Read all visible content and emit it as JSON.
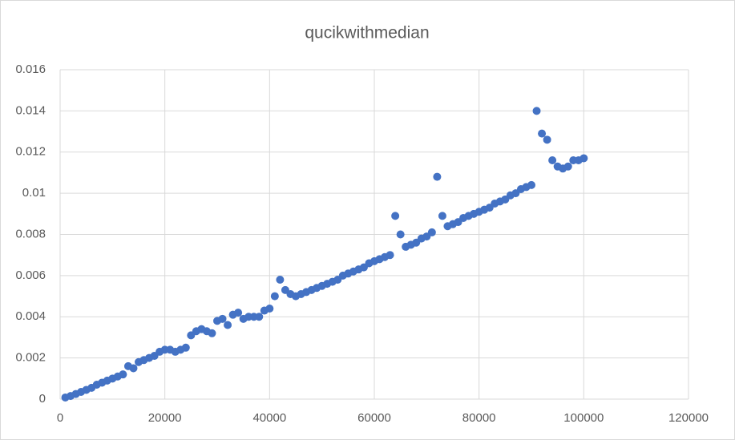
{
  "chart_data": {
    "type": "scatter",
    "title": "qucikwithmedian",
    "series": [
      {
        "color": "#4472c4",
        "x": [
          1000,
          2000,
          3000,
          4000,
          5000,
          6000,
          7000,
          8000,
          9000,
          10000,
          11000,
          12000,
          13000,
          14000,
          15000,
          16000,
          17000,
          18000,
          19000,
          20000,
          21000,
          22000,
          23000,
          24000,
          25000,
          26000,
          27000,
          28000,
          29000,
          30000,
          31000,
          32000,
          33000,
          34000,
          35000,
          36000,
          37000,
          38000,
          39000,
          40000,
          41000,
          42000,
          43000,
          44000,
          45000,
          46000,
          47000,
          48000,
          49000,
          50000,
          51000,
          52000,
          53000,
          54000,
          55000,
          56000,
          57000,
          58000,
          59000,
          60000,
          61000,
          62000,
          63000,
          64000,
          65000,
          66000,
          67000,
          68000,
          69000,
          70000,
          71000,
          72000,
          73000,
          74000,
          75000,
          76000,
          77000,
          78000,
          79000,
          80000,
          81000,
          82000,
          83000,
          84000,
          85000,
          86000,
          87000,
          88000,
          89000,
          90000,
          91000,
          92000,
          93000,
          94000,
          95000,
          96000,
          97000,
          98000,
          99000,
          100000
        ],
        "values": [
          8e-05,
          0.00015,
          0.00025,
          0.00035,
          0.00045,
          0.00055,
          0.0007,
          0.0008,
          0.0009,
          0.001,
          0.0011,
          0.0012,
          0.0016,
          0.0015,
          0.0018,
          0.0019,
          0.002,
          0.0021,
          0.0023,
          0.0024,
          0.0024,
          0.0023,
          0.0024,
          0.0025,
          0.0031,
          0.0033,
          0.0034,
          0.0033,
          0.0032,
          0.0038,
          0.0039,
          0.0036,
          0.0041,
          0.0042,
          0.0039,
          0.004,
          0.004,
          0.004,
          0.0043,
          0.0044,
          0.005,
          0.0058,
          0.0053,
          0.0051,
          0.005,
          0.0051,
          0.0052,
          0.0053,
          0.0054,
          0.0055,
          0.0056,
          0.0057,
          0.0058,
          0.006,
          0.0061,
          0.0062,
          0.0063,
          0.0064,
          0.0066,
          0.0067,
          0.0068,
          0.0069,
          0.007,
          0.0089,
          0.008,
          0.0074,
          0.0075,
          0.0076,
          0.0078,
          0.0079,
          0.0081,
          0.0108,
          0.0089,
          0.0084,
          0.0085,
          0.0086,
          0.0088,
          0.0089,
          0.009,
          0.0091,
          0.0092,
          0.0093,
          0.0095,
          0.0096,
          0.0097,
          0.0099,
          0.01,
          0.0102,
          0.0103,
          0.0104,
          0.014,
          0.0129,
          0.0126,
          0.0116,
          0.0113,
          0.0112,
          0.0113,
          0.0116,
          0.0116,
          0.0117
        ]
      }
    ],
    "xlim": [
      0,
      120000
    ],
    "xticks": [
      0,
      20000,
      40000,
      60000,
      80000,
      100000,
      120000
    ],
    "ylim": [
      0,
      0.016
    ],
    "yticks": [
      0,
      0.002,
      0.004,
      0.006,
      0.008,
      0.01,
      0.012,
      0.014,
      0.016
    ],
    "grid": true
  }
}
